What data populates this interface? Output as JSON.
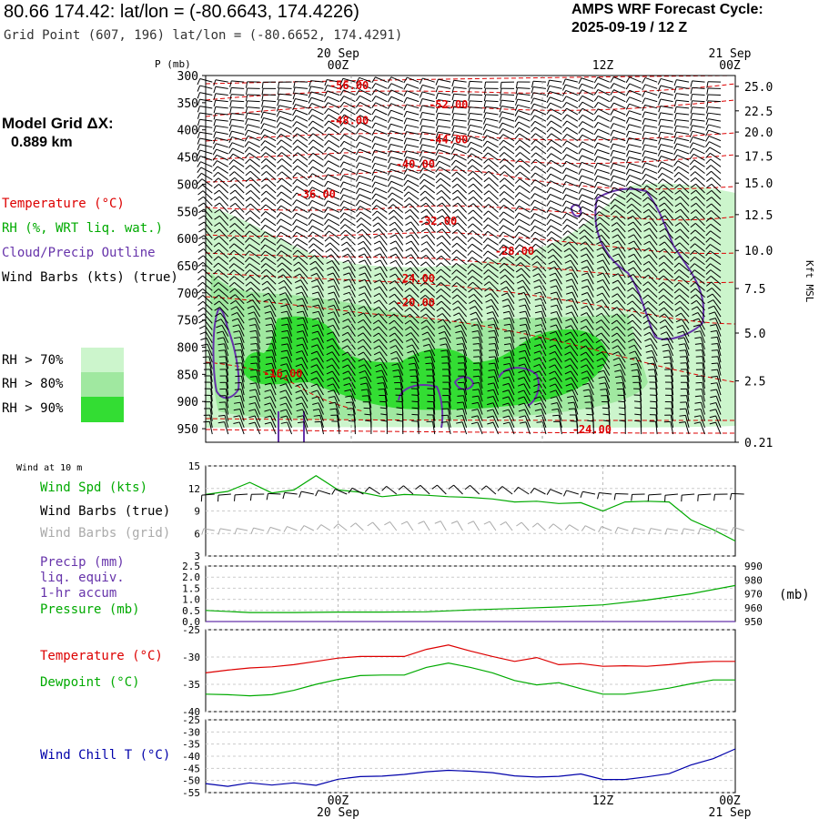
{
  "header": {
    "point_title": "80.66 174.42:  lat/lon = (-80.6643, 174.4226)",
    "grid_point": "Grid Point (607, 196) lat/lon = (-80.6652, 174.4291)",
    "forecast_title": "AMPS WRF Forecast Cycle:",
    "forecast_cycle": "2025-09-19 / 12  Z"
  },
  "model_grid": {
    "label": "Model Grid ΔX:",
    "value": "0.889 km"
  },
  "time_axis": {
    "top_dates": [
      "20 Sep",
      "21 Sep"
    ],
    "ticks": [
      "00Z",
      "12Z",
      "00Z"
    ],
    "bottom_dates": [
      "20 Sep",
      "21 Sep"
    ]
  },
  "colors": {
    "temperature": "#dd0000",
    "rh": "#00aa00",
    "cloud": "#6633aa",
    "wind": "#000000",
    "wind_grid": "#aaaaaa",
    "precip": "#6633aa",
    "pressure": "#00aa00",
    "dewpoint": "#00aa00",
    "wind_chill": "#0000aa",
    "rh70": "#ccf5cc",
    "rh80": "#a0e8a0",
    "rh90": "#33dd33"
  },
  "chart_data": [
    {
      "type": "area",
      "name": "cross-section",
      "y_axis_label": "P (mb)",
      "pressure_levels": [
        300,
        350,
        400,
        450,
        500,
        550,
        600,
        650,
        700,
        750,
        800,
        850,
        900,
        950
      ],
      "ylim_mb": [
        300,
        975
      ],
      "height_axis_label": "Kft MSL",
      "height_ticks_kft": [
        "25.0",
        "22.5",
        "20.0",
        "17.5",
        "15.0",
        "12.5",
        "10.0",
        "7.5",
        "5.0",
        "2.5",
        "0.21"
      ],
      "height_tick_pressures_mb": [
        320,
        365,
        404,
        448,
        498,
        556,
        622,
        692,
        774,
        862,
        975
      ],
      "forecast_hours": [
        -6,
        18
      ],
      "temperature_labels": [
        {
          "text": "-56.00",
          "hour": 0.5,
          "p": 325
        },
        {
          "text": "-52.00",
          "hour": 5.0,
          "p": 360
        },
        {
          "text": "-48.00",
          "hour": 0.5,
          "p": 390
        },
        {
          "text": "-44.00",
          "hour": 5.0,
          "p": 425
        },
        {
          "text": "-40.00",
          "hour": 3.5,
          "p": 470
        },
        {
          "text": "-36.00",
          "hour": -1.0,
          "p": 525
        },
        {
          "text": "-32.00",
          "hour": 4.5,
          "p": 575
        },
        {
          "text": "-28.00",
          "hour": 8.0,
          "p": 630
        },
        {
          "text": "-24.00",
          "hour": 3.5,
          "p": 680
        },
        {
          "text": "-20.00",
          "hour": 3.5,
          "p": 725
        },
        {
          "text": "-16.00",
          "hour": -2.5,
          "p": 855
        },
        {
          "text": "-24.00",
          "hour": 11.5,
          "p": 958
        }
      ],
      "legend": [
        "Temperature (°C)",
        "RH (%, WRT liq. wat.)",
        "Cloud/Precip Outline",
        "Wind Barbs (kts) (true)"
      ],
      "rh_legend": [
        "RH > 70%",
        "RH > 80%",
        "RH > 90%"
      ]
    },
    {
      "type": "line",
      "name": "wind-10m",
      "panel_title": "Wind at 10 m",
      "yticks": [
        3,
        6,
        9,
        12,
        15
      ],
      "ylim": [
        3,
        15
      ],
      "labels": [
        "Wind Spd (kts)",
        "Wind Barbs (true)",
        "Wind Barbs (grid)"
      ],
      "hours": [
        -6,
        -5,
        -4,
        -3,
        -2,
        -1,
        0,
        1,
        2,
        3,
        4,
        5,
        6,
        7,
        8,
        9,
        10,
        11,
        12,
        13,
        14,
        15,
        16,
        17,
        18
      ],
      "wind_speed_kts": [
        11.2,
        11.6,
        12.8,
        11.4,
        11.8,
        13.7,
        11.8,
        11.5,
        10.9,
        11.2,
        11.1,
        10.9,
        10.8,
        10.6,
        10.2,
        10.3,
        10.0,
        10.1,
        9.0,
        10.2,
        10.3,
        10.2,
        7.8,
        6.5,
        5.0
      ]
    },
    {
      "type": "line",
      "name": "precip-pressure",
      "labels": [
        "Precip (mm)",
        "liq. equiv.",
        "1-hr accum",
        "Pressure (mb)"
      ],
      "precip_yticks": [
        "0.0",
        "0.5",
        "1.0",
        "1.5",
        "2.0",
        "2.5"
      ],
      "precip_ylim": [
        0,
        2.5
      ],
      "pressure_yticks": [
        950,
        960,
        970,
        980,
        990
      ],
      "pressure_ylim": [
        950,
        990
      ],
      "hours": [
        -6,
        -4,
        -2,
        0,
        2,
        4,
        6,
        8,
        10,
        12,
        14,
        16,
        18
      ],
      "pressure_mb": [
        958,
        956.5,
        956.5,
        956.8,
        956.8,
        957,
        958.4,
        959.4,
        960.5,
        962,
        965.5,
        970,
        976
      ],
      "precip_mm": [
        0,
        0,
        0,
        0,
        0,
        0,
        0,
        0,
        0,
        0,
        0,
        0,
        0
      ]
    },
    {
      "type": "line",
      "name": "temperature-dewpoint",
      "labels": [
        "Temperature (°C)",
        "Dewpoint (°C)"
      ],
      "yticks": [
        -40,
        -35,
        -30,
        -25
      ],
      "ylim": [
        -40,
        -25
      ],
      "hours": [
        -6,
        -5,
        -4,
        -3,
        -2,
        -1,
        0,
        1,
        2,
        3,
        4,
        5,
        6,
        7,
        8,
        9,
        10,
        11,
        12,
        13,
        14,
        15,
        16,
        17,
        18
      ],
      "temperature_c": [
        -32.9,
        -32.4,
        -32.0,
        -31.8,
        -31.4,
        -30.8,
        -30.2,
        -29.9,
        -29.9,
        -29.9,
        -28.6,
        -27.8,
        -28.9,
        -29.9,
        -30.8,
        -30.1,
        -31.4,
        -31.2,
        -31.7,
        -31.6,
        -31.7,
        -31.4,
        -31.0,
        -30.8,
        -30.8
      ],
      "dewpoint_c": [
        -36.8,
        -36.9,
        -37.1,
        -36.9,
        -36.1,
        -35.0,
        -34.1,
        -33.4,
        -33.3,
        -33.3,
        -31.9,
        -31.1,
        -31.9,
        -32.9,
        -34.3,
        -35.1,
        -34.7,
        -35.8,
        -36.8,
        -36.8,
        -36.3,
        -35.7,
        -34.9,
        -34.2,
        -34.2
      ]
    },
    {
      "type": "line",
      "name": "wind-chill",
      "labels": [
        "Wind Chill T (°C)"
      ],
      "yticks": [
        -55,
        -50,
        -45,
        -40,
        -35,
        -30,
        -25
      ],
      "ylim": [
        -55,
        -25
      ],
      "hours": [
        -6,
        -5,
        -4,
        -3,
        -2,
        -1,
        0,
        1,
        2,
        3,
        4,
        5,
        6,
        7,
        8,
        9,
        10,
        11,
        12,
        13,
        14,
        15,
        16,
        17,
        18
      ],
      "wind_chill_c": [
        -51.3,
        -52.4,
        -51.0,
        -51.9,
        -51.0,
        -52.0,
        -49.5,
        -48.4,
        -48.2,
        -47.5,
        -46.4,
        -45.8,
        -46.2,
        -46.8,
        -48.1,
        -48.6,
        -48.3,
        -47.3,
        -49.6,
        -49.6,
        -48.5,
        -47.2,
        -43.6,
        -41.0,
        -37.0
      ]
    }
  ]
}
